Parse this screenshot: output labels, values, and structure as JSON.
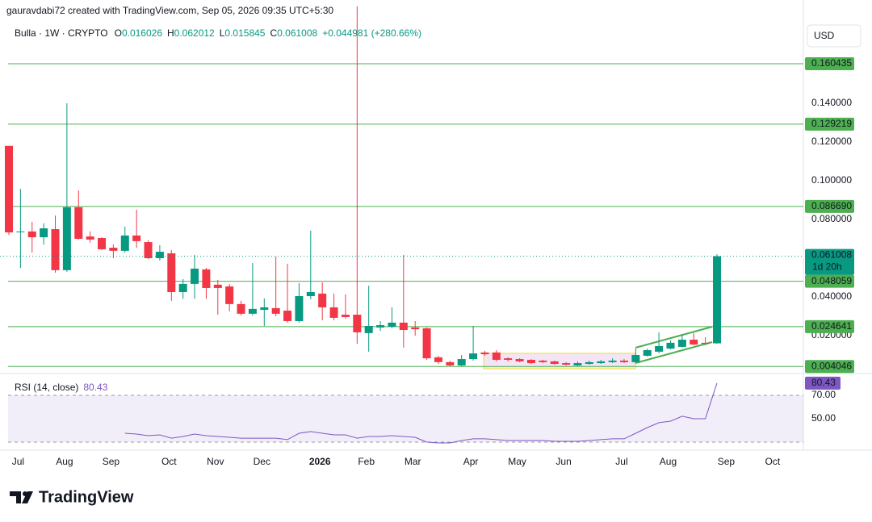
{
  "chart_data": {
    "type": "candlestick",
    "attribution": "gauravdabi72 created with TradingView.com, Sep 05, 2026 09:35 UTC+5:30",
    "symbol": "Bulla · 1W · CRYPTO",
    "ohlc_legend": [
      {
        "key": "O",
        "value": 0.016026
      },
      {
        "key": "H",
        "value": 0.062012
      },
      {
        "key": "L",
        "value": 0.015845
      },
      {
        "key": "C",
        "value": 0.061008
      }
    ],
    "change_label": "+0.044981 (+280.66%)",
    "currency": "USD",
    "brand": "TradingView",
    "up_color": "#089981",
    "down_color": "#f23645",
    "categories": [
      null,
      "Jul",
      null,
      null,
      null,
      "Aug",
      null,
      null,
      null,
      "Sep",
      null,
      null,
      null,
      null,
      "Oct",
      null,
      null,
      null,
      "Nov",
      null,
      null,
      null,
      "Dec",
      null,
      null,
      null,
      null,
      "2026",
      null,
      null,
      null,
      "Feb",
      null,
      null,
      null,
      "Mar",
      null,
      null,
      null,
      null,
      "Apr",
      null,
      null,
      null,
      "May",
      null,
      null,
      null,
      "Jun",
      null,
      null,
      null,
      null,
      "Jul",
      null,
      null,
      null,
      "Aug",
      null,
      null,
      null,
      null,
      "Sep",
      null,
      null,
      null,
      "Oct"
    ],
    "open": [
      0.118,
      0.0735,
      0.0738,
      0.0708,
      0.075,
      0.0538,
      0.0863,
      0.0712,
      0.0704,
      0.0654,
      0.0638,
      0.0717,
      0.0683,
      0.06,
      0.0625,
      0.0425,
      0.0467,
      0.0542,
      0.0463,
      0.0454,
      0.0363,
      0.0313,
      0.0333,
      0.0342,
      0.0329,
      0.0275,
      0.0404,
      0.0417,
      0.0346,
      0.0308,
      0.0308,
      0.0213,
      0.0242,
      0.0246,
      0.0267,
      0.0242,
      0.0238,
      0.0088,
      0.0063,
      0.0046,
      0.0079,
      0.0113,
      0.0113,
      0.0083,
      0.0079,
      0.0075,
      0.0071,
      0.0067,
      0.0058,
      0.0046,
      0.0054,
      0.0058,
      0.0063,
      0.0071,
      0.0063,
      0.0096,
      0.0117,
      0.0133,
      0.0142,
      0.0179,
      0.0163,
      0.016026,
      null,
      null,
      null,
      null,
      null
    ],
    "high": [
      0.118,
      0.0958,
      0.0788,
      0.078,
      0.082,
      0.14,
      0.095,
      0.0738,
      0.0708,
      0.067,
      0.0763,
      0.085,
      0.0692,
      0.0667,
      0.0642,
      0.0492,
      0.0617,
      0.055,
      0.0488,
      0.0467,
      0.038,
      0.0575,
      0.0392,
      0.0608,
      0.0571,
      0.0471,
      0.0742,
      0.0475,
      0.0417,
      0.0413,
      0.19,
      0.0458,
      0.0275,
      0.0346,
      0.0617,
      0.0275,
      0.0242,
      0.0096,
      0.0071,
      0.01,
      0.025,
      0.0121,
      0.0125,
      0.0088,
      0.0083,
      0.0079,
      0.0075,
      0.0071,
      0.0063,
      0.0067,
      0.0071,
      0.0075,
      0.0083,
      0.0079,
      0.0133,
      0.0133,
      0.0217,
      0.0175,
      0.0208,
      0.0213,
      0.0192,
      0.062012,
      null,
      null,
      null,
      null,
      null
    ],
    "low": [
      0.072,
      0.055,
      0.0629,
      0.067,
      0.0525,
      0.053,
      0.0696,
      0.068,
      0.0642,
      0.06,
      0.0629,
      0.0654,
      0.0596,
      0.0588,
      0.038,
      0.039,
      0.039,
      0.039,
      0.0308,
      0.0325,
      0.0304,
      0.0304,
      0.025,
      0.03,
      0.0267,
      0.0267,
      0.0388,
      0.0279,
      0.0279,
      0.0288,
      0.0158,
      0.0117,
      0.0225,
      0.0238,
      0.0138,
      0.02,
      0.0075,
      0.0054,
      0.0042,
      0.0042,
      0.0071,
      0.0096,
      0.0067,
      0.0067,
      0.0063,
      0.0054,
      0.0058,
      0.005,
      0.0046,
      0.0042,
      0.005,
      0.0054,
      0.0058,
      0.0058,
      0.0058,
      0.0092,
      0.0108,
      0.0129,
      0.0138,
      0.015,
      0.015,
      0.015845,
      null,
      null,
      null,
      null,
      null
    ],
    "close": [
      0.0733,
      0.0738,
      0.0708,
      0.0754,
      0.0538,
      0.0863,
      0.07,
      0.0696,
      0.0646,
      0.0638,
      0.0717,
      0.0688,
      0.06,
      0.0633,
      0.0425,
      0.0467,
      0.0546,
      0.0446,
      0.0446,
      0.0363,
      0.0313,
      0.0338,
      0.0346,
      0.0313,
      0.0275,
      0.0404,
      0.0425,
      0.0346,
      0.0292,
      0.0296,
      0.0217,
      0.025,
      0.0254,
      0.0267,
      0.0229,
      0.0233,
      0.0083,
      0.0063,
      0.0046,
      0.0079,
      0.0108,
      0.0104,
      0.0075,
      0.0075,
      0.0067,
      0.0058,
      0.0063,
      0.0054,
      0.005,
      0.0058,
      0.0063,
      0.0067,
      0.0071,
      0.0063,
      0.01,
      0.0125,
      0.0146,
      0.0163,
      0.0179,
      0.0154,
      0.0158,
      0.061008,
      null,
      null,
      null,
      null,
      null
    ],
    "ylim": [
      0.00083,
      0.19333
    ],
    "yticks": [
      {
        "value": 0.14,
        "label": "0.140000"
      },
      {
        "value": 0.12,
        "label": "0.120000"
      },
      {
        "value": 0.1,
        "label": "0.100000"
      },
      {
        "value": 0.08,
        "label": "0.080000"
      },
      {
        "value": 0.04,
        "label": "0.040000"
      },
      {
        "value": 0.02,
        "label": "0.020000"
      }
    ],
    "grid": false,
    "levels": [
      0.160435,
      0.129219,
      {
        "value": 0.08669,
        "label": "0.086690"
      },
      0.048059,
      0.024641,
      0.004046
    ],
    "level_color": "#4caf50",
    "last_price": 0.061008,
    "countdown": "1d 20h",
    "rsi": {
      "title": "RSI (14, close)",
      "last": 80.43,
      "color": "#7e57c2",
      "values": [
        null,
        null,
        null,
        null,
        null,
        null,
        null,
        null,
        null,
        null,
        37.6,
        36.9,
        35.5,
        36.2,
        33.4,
        34.8,
        36.9,
        35.5,
        34.8,
        34.1,
        33.4,
        33.4,
        33.4,
        33.4,
        32.1,
        37.6,
        39.0,
        37.6,
        36.2,
        36.2,
        33.4,
        34.8,
        34.8,
        35.5,
        34.8,
        34.1,
        30.0,
        29.3,
        29.3,
        31.4,
        32.8,
        32.8,
        32.1,
        31.4,
        31.4,
        31.4,
        31.4,
        30.7,
        30.7,
        30.7,
        31.4,
        32.1,
        32.8,
        32.8,
        37.6,
        42.4,
        46.6,
        47.9,
        52.1,
        50.0,
        50.0,
        80.43,
        null,
        null,
        null,
        null,
        null
      ],
      "ylim": [
        23.1,
        87.2
      ],
      "yticks": [
        {
          "value": 50,
          "label": "50.00"
        },
        {
          "value": 70,
          "label": "70.00"
        }
      ],
      "bands": [
        30,
        70
      ]
    }
  }
}
